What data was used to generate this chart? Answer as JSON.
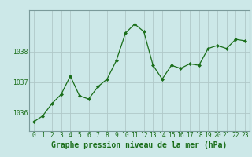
{
  "x": [
    0,
    1,
    2,
    3,
    4,
    5,
    6,
    7,
    8,
    9,
    10,
    11,
    12,
    13,
    14,
    15,
    16,
    17,
    18,
    19,
    20,
    21,
    22,
    23
  ],
  "y": [
    1035.7,
    1035.9,
    1036.3,
    1036.6,
    1037.2,
    1036.55,
    1036.45,
    1036.85,
    1037.1,
    1037.7,
    1038.6,
    1038.9,
    1038.65,
    1037.55,
    1037.1,
    1037.55,
    1037.45,
    1037.6,
    1037.55,
    1038.1,
    1038.2,
    1038.1,
    1038.4,
    1038.35
  ],
  "line_color": "#1a6e1a",
  "marker_color": "#1a6e1a",
  "bg_color": "#cce8e8",
  "grid_color": "#b0c8c8",
  "title": "Graphe pression niveau de la mer (hPa)",
  "title_color": "#1a6e1a",
  "ylim_min": 1035.4,
  "ylim_max": 1039.35,
  "xlim_min": -0.5,
  "xlim_max": 23.5,
  "yticks": [
    1036,
    1037,
    1038
  ],
  "xticks": [
    0,
    1,
    2,
    3,
    4,
    5,
    6,
    7,
    8,
    9,
    10,
    11,
    12,
    13,
    14,
    15,
    16,
    17,
    18,
    19,
    20,
    21,
    22,
    23
  ],
  "title_fontsize": 7.0,
  "tick_fontsize": 5.8,
  "spine_color": "#7a9a9a"
}
